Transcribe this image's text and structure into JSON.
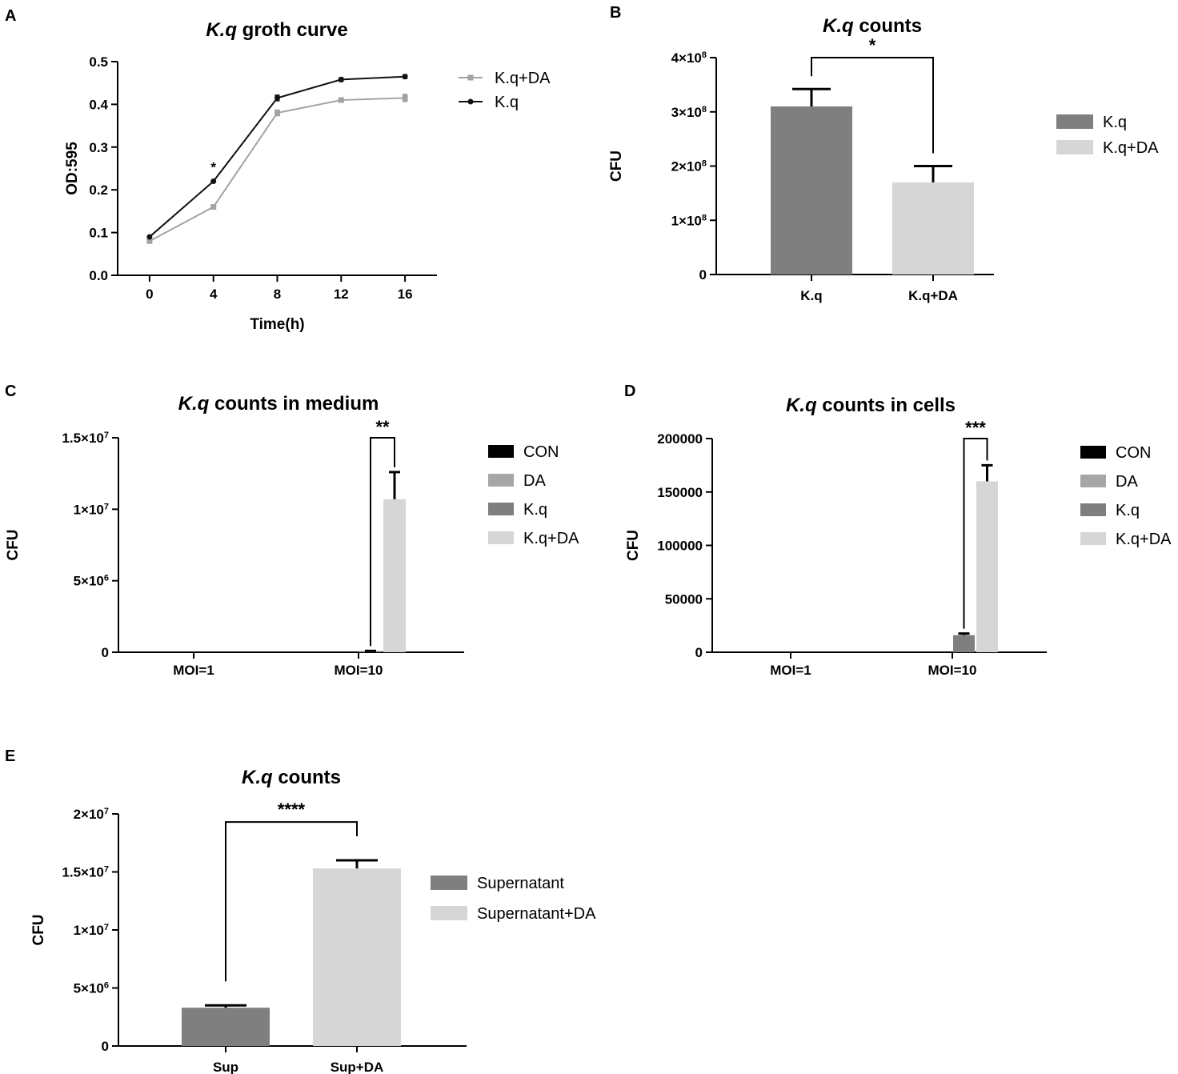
{
  "colors": {
    "con": "#000000",
    "da": "#a6a6a6",
    "kq": "#7f7f7f",
    "kqda": "#d6d6d6",
    "kq_line": "#111111",
    "kqda_line": "#a3a3a3",
    "axis": "#000000"
  },
  "chart_data": [
    {
      "id": "A",
      "panel_label": "A",
      "type": "line",
      "title_italic": "K.q",
      "title_rest": "groth curve",
      "xlabel": "Time(h)",
      "ylabel": "OD:595",
      "x": [
        0,
        4,
        8,
        12,
        16
      ],
      "x_ticks": [
        "0",
        "4",
        "8",
        "12",
        "16"
      ],
      "xlim": [
        -2,
        18
      ],
      "ylim": [
        0,
        0.5
      ],
      "y_ticks": [
        "0.0",
        "0.1",
        "0.2",
        "0.3",
        "0.4",
        "0.5"
      ],
      "series": [
        {
          "name": "K.q+DA",
          "values": [
            0.08,
            0.16,
            0.38,
            0.41,
            0.415
          ],
          "errors": [
            0.003,
            0.003,
            0.008,
            0.006,
            0.01
          ],
          "marker": "square"
        },
        {
          "name": "K.q",
          "values": [
            0.09,
            0.22,
            0.415,
            0.458,
            0.465
          ],
          "errors": [
            0.003,
            0.003,
            0.008,
            0.006,
            0.006
          ],
          "marker": "circle"
        }
      ],
      "annotations": [
        {
          "text": "*",
          "x": 4,
          "y": 0.28
        }
      ],
      "legend": "right"
    },
    {
      "id": "B",
      "panel_label": "B",
      "type": "bar",
      "title_italic": "K.q",
      "title_rest": "counts",
      "xlabel": "",
      "ylabel": "CFU",
      "categories": [
        "K.q",
        "K.q+DA"
      ],
      "values": [
        310000000,
        170000000
      ],
      "errors": [
        32000000,
        30000000
      ],
      "ylim": [
        0,
        400000000
      ],
      "y_ticks": [
        {
          "value": 0,
          "base": "0",
          "exp": ""
        },
        {
          "value": 100000000,
          "base": "1×10",
          "exp": "8"
        },
        {
          "value": 200000000,
          "base": "2×10",
          "exp": "8"
        },
        {
          "value": 300000000,
          "base": "3×10",
          "exp": "8"
        },
        {
          "value": 400000000,
          "base": "4×10",
          "exp": "8"
        }
      ],
      "legend_entries": [
        {
          "label": "K.q",
          "color": "#7f7f7f"
        },
        {
          "label": "K.q+DA",
          "color": "#d6d6d6"
        }
      ],
      "significance": [
        {
          "text": "*",
          "from": 0,
          "to": 1,
          "top": 400000000
        }
      ],
      "legend": "right"
    },
    {
      "id": "C",
      "panel_label": "C",
      "type": "bar",
      "title_italic": "K.q",
      "title_rest": "counts in medium",
      "xlabel": "",
      "ylabel": "CFU",
      "categories": [
        "MOI=1",
        "MOI=10"
      ],
      "series": [
        {
          "name": "CON",
          "color": "#000000",
          "values": [
            0,
            0
          ],
          "errors": [
            0,
            0
          ]
        },
        {
          "name": "DA",
          "color": "#a6a6a6",
          "values": [
            0,
            0
          ],
          "errors": [
            0,
            0
          ]
        },
        {
          "name": "K.q",
          "color": "#7f7f7f",
          "values": [
            0,
            80000
          ],
          "errors": [
            0,
            15000
          ]
        },
        {
          "name": "K.q+DA",
          "color": "#d6d6d6",
          "values": [
            0,
            10700000
          ],
          "errors": [
            0,
            1900000
          ]
        }
      ],
      "ylim": [
        0,
        15000000
      ],
      "y_ticks": [
        {
          "value": 0,
          "base": "0",
          "exp": ""
        },
        {
          "value": 5000000,
          "base": "5×10",
          "exp": "6"
        },
        {
          "value": 10000000,
          "base": "1×10",
          "exp": "7"
        },
        {
          "value": 15000000,
          "base": "1.5×10",
          "exp": "7"
        }
      ],
      "significance": [
        {
          "text": "**",
          "category": 1,
          "from": 2,
          "to": 3,
          "top": 15000000
        }
      ],
      "legend": "right"
    },
    {
      "id": "D",
      "panel_label": "D",
      "type": "bar",
      "title_italic": "K.q",
      "title_rest": "counts in cells",
      "xlabel": "",
      "ylabel": "CFU",
      "categories": [
        "MOI=1",
        "MOI=10"
      ],
      "series": [
        {
          "name": "CON",
          "color": "#000000",
          "values": [
            0,
            0
          ],
          "errors": [
            0,
            0
          ]
        },
        {
          "name": "DA",
          "color": "#a6a6a6",
          "values": [
            0,
            0
          ],
          "errors": [
            0,
            0
          ]
        },
        {
          "name": "K.q",
          "color": "#7f7f7f",
          "values": [
            0,
            16000
          ],
          "errors": [
            0,
            1500
          ]
        },
        {
          "name": "K.q+DA",
          "color": "#d6d6d6",
          "values": [
            0,
            160000
          ],
          "errors": [
            0,
            15000
          ]
        }
      ],
      "ylim": [
        0,
        200000
      ],
      "y_ticks": [
        {
          "value": 0,
          "base": "0",
          "exp": ""
        },
        {
          "value": 50000,
          "base": "50000",
          "exp": ""
        },
        {
          "value": 100000,
          "base": "100000",
          "exp": ""
        },
        {
          "value": 150000,
          "base": "150000",
          "exp": ""
        },
        {
          "value": 200000,
          "base": "200000",
          "exp": ""
        }
      ],
      "significance": [
        {
          "text": "***",
          "category": 1,
          "from": 2,
          "to": 3,
          "top": 200000
        }
      ],
      "legend": "right"
    },
    {
      "id": "E",
      "panel_label": "E",
      "type": "bar",
      "title_italic": "K.q",
      "title_rest": "counts",
      "xlabel": "",
      "ylabel": "CFU",
      "categories": [
        "Sup",
        "Sup+DA"
      ],
      "values": [
        3300000,
        15300000
      ],
      "errors": [
        200000,
        700000
      ],
      "ylim": [
        0,
        20000000
      ],
      "y_ticks": [
        {
          "value": 0,
          "base": "0",
          "exp": ""
        },
        {
          "value": 5000000,
          "base": "5×10",
          "exp": "6"
        },
        {
          "value": 10000000,
          "base": "1×10",
          "exp": "7"
        },
        {
          "value": 15000000,
          "base": "1.5×10",
          "exp": "7"
        },
        {
          "value": 20000000,
          "base": "2×10",
          "exp": "7"
        }
      ],
      "legend_entries": [
        {
          "label": "Supernatant",
          "color": "#7f7f7f"
        },
        {
          "label": "Supernatant+DA",
          "color": "#d6d6d6"
        }
      ],
      "significance": [
        {
          "text": "****",
          "from": 0,
          "to": 1,
          "top": 19300000
        }
      ],
      "legend": "right"
    }
  ]
}
